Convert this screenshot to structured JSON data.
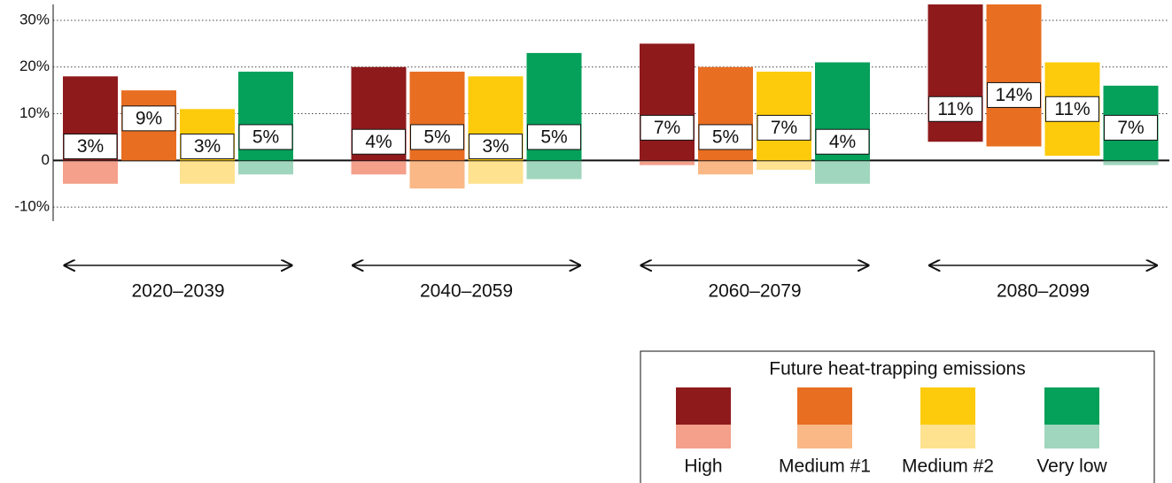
{
  "chart_data": {
    "type": "floating_bar",
    "categories": [
      "2020–2039",
      "2040–2059",
      "2060–2079",
      "2080–2099"
    ],
    "ylim": [
      -13,
      33.4
    ],
    "yticks": [
      {
        "value": -10,
        "label": "-10%"
      },
      0,
      {
        "value": 10,
        "label": "10%"
      },
      {
        "value": 20,
        "label": "20%"
      },
      {
        "value": 30,
        "label": "30%"
      }
    ],
    "grid": true,
    "legend": {
      "title": "Future heat-trapping emissions",
      "position": "bottom-right"
    },
    "series": [
      {
        "name": "High",
        "color": "#8e1a1c",
        "light_color": "#f4a08b",
        "high": [
          18,
          20,
          25,
          34
        ],
        "low": [
          -5,
          -3,
          -1,
          4
        ],
        "median": [
          3,
          4,
          7,
          11
        ],
        "value_labels": [
          "3%",
          "4%",
          "7%",
          "11%"
        ]
      },
      {
        "name": "Medium #1",
        "color": "#e86e22",
        "light_color": "#f9b886",
        "high": [
          15,
          19,
          20,
          34
        ],
        "low": [
          0,
          -6,
          -3,
          3
        ],
        "median": [
          9,
          5,
          5,
          14
        ],
        "value_labels": [
          "9%",
          "5%",
          "5%",
          "14%"
        ]
      },
      {
        "name": "Medium #2",
        "color": "#fdcb0b",
        "light_color": "#fee290",
        "high": [
          11,
          18,
          19,
          21
        ],
        "low": [
          -5,
          -5,
          -2,
          1
        ],
        "median": [
          3,
          3,
          7,
          11
        ],
        "value_labels": [
          "3%",
          "3%",
          "7%",
          "11%"
        ]
      },
      {
        "name": "Very low",
        "color": "#05a05a",
        "light_color": "#a0d6bd",
        "high": [
          19,
          23,
          21,
          16
        ],
        "low": [
          -3,
          -4,
          -5,
          -1
        ],
        "median": [
          5,
          5,
          4,
          7
        ],
        "value_labels": [
          "5%",
          "5%",
          "4%",
          "7%"
        ]
      }
    ]
  }
}
